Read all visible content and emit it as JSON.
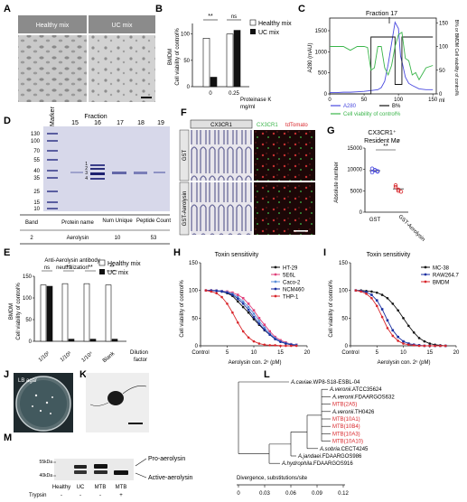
{
  "panel_labels": [
    "A",
    "B",
    "C",
    "D",
    "E",
    "F",
    "G",
    "H",
    "I",
    "J",
    "K",
    "L",
    "M"
  ],
  "panelA": {
    "labels": [
      "Healthy mix",
      "UC mix"
    ]
  },
  "panelB": {
    "chart_data": {
      "type": "bar",
      "ylabel_lines": [
        "BMDM",
        "Cell viability of control%"
      ],
      "yticks": [
        "0",
        "50",
        "100"
      ],
      "ylim": [
        0,
        100
      ],
      "categories": [
        "0",
        "0.25"
      ],
      "series": [
        {
          "name": "Healthy mix",
          "values": [
            92,
            100
          ]
        },
        {
          "name": "UC mix",
          "values": [
            18,
            107
          ]
        }
      ],
      "xlabel_lines": [
        "Proteinase K",
        "mg/ml"
      ],
      "sig": [
        "**",
        "ns"
      ]
    }
  },
  "panelC": {
    "chart_data": {
      "type": "line",
      "ylabel_left": "A280 (mAU)",
      "ylabel_right": "B% or BMDM Cell viability of control%",
      "yticks_left": [
        "0",
        "500",
        "1000",
        "1500"
      ],
      "yticks_right": [
        "0",
        "50",
        "100",
        "150"
      ],
      "xticks": [
        "0",
        "50",
        "100",
        "150"
      ],
      "xunit": "ml",
      "annotation": "Fraction 17",
      "series": [
        {
          "name": "A280",
          "x": [
            0,
            10,
            20,
            30,
            40,
            50,
            60,
            70,
            75,
            80,
            85,
            90,
            95,
            100,
            103,
            106,
            110,
            115,
            120,
            130,
            140,
            150
          ],
          "y": [
            30,
            30,
            40,
            40,
            50,
            60,
            80,
            100,
            150,
            300,
            700,
            1200,
            1700,
            1550,
            900,
            700,
            400,
            250,
            200,
            120,
            100,
            100
          ]
        },
        {
          "name": "B%",
          "x": [
            0,
            60,
            60,
            95,
            95,
            105,
            105,
            150
          ],
          "y": [
            0,
            0,
            120,
            120,
            20,
            20,
            120,
            120
          ]
        },
        {
          "name": "Cell viability of control%",
          "x": [
            0,
            10,
            20,
            30,
            40,
            50,
            55,
            60,
            65,
            70,
            75,
            80,
            85,
            90,
            95,
            100,
            105,
            110,
            115,
            120,
            125,
            130,
            140,
            150
          ],
          "y": [
            100,
            100,
            100,
            92,
            100,
            100,
            98,
            50,
            55,
            100,
            100,
            55,
            40,
            60,
            100,
            125,
            130,
            75,
            70,
            40,
            45,
            30,
            55,
            60
          ]
        }
      ],
      "legend": [
        "A280",
        "B%",
        "Cell viability of control%"
      ]
    }
  },
  "panelD": {
    "header": "Fraction",
    "lanes": [
      "Marker",
      "15",
      "16",
      "17",
      "18",
      "19"
    ],
    "mw": [
      "130",
      "100",
      "70",
      "55",
      "40",
      "35",
      "25",
      "15",
      "10"
    ],
    "band_marks": [
      "1",
      "2",
      "3",
      "4"
    ],
    "table": {
      "headers": [
        "Band",
        "Protein name",
        "Num Unique",
        "Peptide Count"
      ],
      "row": [
        "2",
        "Aerolysin",
        "10",
        "53"
      ]
    }
  },
  "panelE": {
    "chart_data": {
      "type": "bar",
      "title_lines": [
        "Anti-Aerolysin antibody",
        "neutralization"
      ],
      "ylabel_lines": [
        "BMDM",
        "Cell viability of control%"
      ],
      "yticks": [
        "0",
        "50",
        "100",
        "150"
      ],
      "ylim": [
        0,
        150
      ],
      "categories": [
        "1/10²",
        "1/10³",
        "1/10⁴",
        "Blank"
      ],
      "series": [
        {
          "name": "Healthy mix",
          "values": [
            130,
            133,
            133,
            130
          ]
        },
        {
          "name": "UC mix",
          "values": [
            127,
            5,
            5,
            5
          ]
        }
      ],
      "sig": [
        "ns",
        "**",
        "**",
        "**"
      ],
      "xlabel_lines": [
        "Dilution",
        "factor"
      ]
    }
  },
  "panelF": {
    "header_left": "CX3CR1",
    "header_right_a": "CX3CR1",
    "header_right_b": "tdTomato",
    "rows": [
      "GST",
      "GST-Aerolysin"
    ]
  },
  "panelG": {
    "chart_data": {
      "type": "scatter",
      "title_lines": [
        "CX3CR1⁺",
        "Resident Mø"
      ],
      "ylabel": "Absolute number",
      "yticks": [
        "0",
        "5000",
        "10000",
        "15000"
      ],
      "ylim": [
        0,
        15000
      ],
      "categories": [
        "GST",
        "GST-Aerolysin"
      ],
      "series": [
        {
          "name": "GST",
          "values": [
            10200,
            9800,
            9500,
            9300,
            9900,
            9600
          ]
        },
        {
          "name": "GST-Aerolysin",
          "values": [
            6300,
            5300,
            4800,
            5900,
            5000
          ]
        }
      ],
      "sig": "**"
    }
  },
  "panelH": {
    "chart_data": {
      "type": "line",
      "title": "Toxin sensitivity",
      "ylabel": "Cell viability of control%",
      "xlabel": "Aerolysin con. 2ⁿ (pM)",
      "yticks": [
        "0",
        "50",
        "100",
        "150"
      ],
      "xticks": [
        "Control",
        "5",
        "10",
        "15",
        "20"
      ],
      "ylim": [
        0,
        150
      ],
      "x": [
        0,
        1,
        2,
        3,
        4,
        5,
        6,
        7,
        8,
        9,
        10,
        11,
        12,
        13,
        14,
        15,
        16,
        17
      ],
      "series": [
        {
          "name": "HT-29",
          "values": [
            100,
            100,
            100,
            98,
            95,
            90,
            80,
            70,
            60,
            48,
            38,
            28,
            20,
            13,
            8,
            4,
            2,
            1
          ],
          "color": "#111111"
        },
        {
          "name": "5E6L",
          "values": [
            100,
            100,
            100,
            99,
            98,
            96,
            92,
            86,
            76,
            64,
            50,
            38,
            26,
            16,
            10,
            6,
            3,
            2
          ],
          "color": "#e0407a"
        },
        {
          "name": "Caco-2",
          "values": [
            100,
            100,
            100,
            99,
            97,
            94,
            88,
            80,
            70,
            58,
            45,
            33,
            22,
            14,
            8,
            5,
            3,
            2
          ],
          "color": "#5b8fd8"
        },
        {
          "name": "NCM460",
          "values": [
            100,
            100,
            99,
            98,
            96,
            92,
            85,
            76,
            65,
            52,
            40,
            29,
            20,
            12,
            7,
            4,
            2,
            1
          ],
          "color": "#1a2fa0"
        },
        {
          "name": "THP-1",
          "values": [
            100,
            98,
            95,
            88,
            76,
            60,
            42,
            26,
            15,
            8,
            4,
            2,
            1,
            1,
            0,
            0,
            0,
            0
          ],
          "color": "#d8262b"
        }
      ]
    }
  },
  "panelI": {
    "chart_data": {
      "type": "line",
      "title": "Toxin sensitivity",
      "ylabel": "Cell viability of control%",
      "xlabel": "Aerolysin con. 2ⁿ (pM)",
      "yticks": [
        "0",
        "50",
        "100",
        "150"
      ],
      "xticks": [
        "Control",
        "5",
        "10",
        "15",
        "20"
      ],
      "ylim": [
        0,
        150
      ],
      "x": [
        0,
        1,
        2,
        3,
        4,
        5,
        6,
        7,
        8,
        9,
        10,
        11,
        12,
        13,
        14,
        15,
        16,
        17
      ],
      "series": [
        {
          "name": "MC-38",
          "values": [
            100,
            100,
            99,
            98,
            96,
            92,
            86,
            76,
            64,
            50,
            36,
            24,
            14,
            8,
            4,
            2,
            1,
            0
          ],
          "color": "#111111"
        },
        {
          "name": "RAW264.7",
          "values": [
            100,
            99,
            97,
            92,
            82,
            66,
            46,
            28,
            16,
            8,
            4,
            2,
            1,
            0,
            0,
            0,
            0,
            0
          ],
          "color": "#1a2fa0"
        },
        {
          "name": "BMDM",
          "values": [
            100,
            98,
            94,
            86,
            72,
            52,
            32,
            18,
            9,
            4,
            2,
            1,
            0,
            0,
            0,
            0,
            0,
            0
          ],
          "color": "#d8262b"
        }
      ]
    }
  },
  "panelJ": {
    "label": "LB agar"
  },
  "panelL": {
    "taxa": [
      {
        "a": "A.caviae",
        "b": ".WP8-S18-ESBL-04",
        "red": false
      },
      {
        "a": "A.veronii",
        "b": ".ATCC35624",
        "red": false
      },
      {
        "a": "A.veronii",
        "b": ".FDAARGOS632",
        "red": false
      },
      {
        "a": "",
        "b": "MTB(2A5)",
        "red": true
      },
      {
        "a": "A.veronii",
        "b": ".TH0426",
        "red": false
      },
      {
        "a": "",
        "b": "MTB(10A1)",
        "red": true
      },
      {
        "a": "",
        "b": "MTB(10B4)",
        "red": true
      },
      {
        "a": "",
        "b": "MTB(10A3)",
        "red": true
      },
      {
        "a": "",
        "b": "MTB(10A10)",
        "red": true
      },
      {
        "a": "A.sobria",
        "b": ".CECT4245",
        "red": false
      },
      {
        "a": "A.jandaei",
        "b": ".FDAARGOS986",
        "red": false
      },
      {
        "a": "A.hydrophila",
        "b": ".FDAARGOS916",
        "red": false
      }
    ],
    "axis_label": "Divergence, substitutions/site",
    "ticks": [
      "0",
      "0.03",
      "0.06",
      "0.09",
      "0.12"
    ]
  },
  "panelM": {
    "mw": [
      "55kDa",
      "40kDa"
    ],
    "lanes": [
      "Healthy",
      "UC",
      "MTB",
      "MTB"
    ],
    "trypsin_label": "Trypsin",
    "trypsin": [
      "-",
      "-",
      "-",
      "+"
    ],
    "arrows": [
      "Pro-aerolysin",
      "Active-aerolysin"
    ]
  },
  "colors": {
    "green": "#3ab54a",
    "blue": "#4a4adf",
    "red": "#d8262b"
  }
}
